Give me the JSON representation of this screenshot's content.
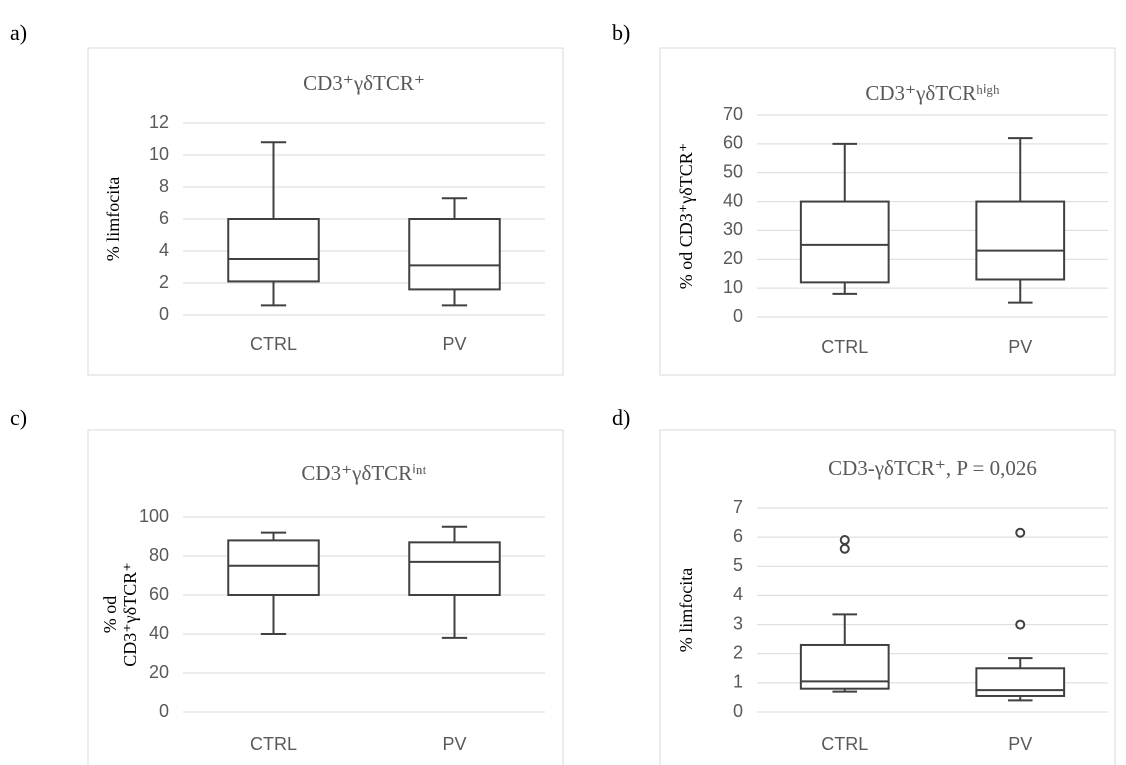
{
  "chart_data": [
    {
      "type": "box",
      "panel_label": "a)",
      "title": "CD3⁺γδTCR⁺",
      "y_label": [
        "% limfocita"
      ],
      "categories": [
        "CTRL",
        "PV"
      ],
      "boxes": [
        {
          "whisker_low": 0.6,
          "q1": 2.1,
          "median": 3.5,
          "q3": 6.0,
          "whisker_high": 10.8,
          "outliers": []
        },
        {
          "whisker_low": 0.6,
          "q1": 1.6,
          "median": 3.1,
          "q3": 6.0,
          "whisker_high": 7.3,
          "outliers": []
        }
      ],
      "ylim": [
        0,
        12
      ],
      "yticks": [
        0,
        2,
        4,
        6,
        8,
        10,
        12
      ],
      "grid": true,
      "color": "#404040"
    },
    {
      "type": "box",
      "panel_label": "b)",
      "title": "CD3⁺γδTCRʰⁱᵍʰ",
      "y_label": [
        "% od CD3⁺γδTCR⁺"
      ],
      "categories": [
        "CTRL",
        "PV"
      ],
      "boxes": [
        {
          "whisker_low": 8,
          "q1": 12,
          "median": 25,
          "q3": 40,
          "whisker_high": 60,
          "outliers": []
        },
        {
          "whisker_low": 5,
          "q1": 13,
          "median": 23,
          "q3": 40,
          "whisker_high": 62,
          "outliers": []
        }
      ],
      "ylim": [
        0,
        70
      ],
      "yticks": [
        0,
        10,
        20,
        30,
        40,
        50,
        60,
        70
      ],
      "grid": true,
      "color": "#404040"
    },
    {
      "type": "box",
      "panel_label": "c)",
      "title": "CD3⁺γδTCRⁱⁿᵗ",
      "y_label": [
        "% od",
        "CD3⁺γδTCR⁺"
      ],
      "categories": [
        "CTRL",
        "PV"
      ],
      "boxes": [
        {
          "whisker_low": 40,
          "q1": 60,
          "median": 75,
          "q3": 88,
          "whisker_high": 92,
          "outliers": []
        },
        {
          "whisker_low": 38,
          "q1": 60,
          "median": 77,
          "q3": 87,
          "whisker_high": 95,
          "outliers": []
        }
      ],
      "ylim": [
        0,
        100
      ],
      "yticks": [
        0,
        20,
        40,
        60,
        80,
        100
      ],
      "grid": true,
      "color": "#404040"
    },
    {
      "type": "box",
      "panel_label": "d)",
      "title": "CD3-γδTCR⁺, P = 0,026",
      "y_label": [
        "% limfocita"
      ],
      "categories": [
        "CTRL",
        "PV"
      ],
      "boxes": [
        {
          "whisker_low": 0.7,
          "q1": 0.8,
          "median": 1.05,
          "q3": 2.3,
          "whisker_high": 3.35,
          "outliers": [
            5.6,
            5.9
          ]
        },
        {
          "whisker_low": 0.4,
          "q1": 0.55,
          "median": 0.75,
          "q3": 1.5,
          "whisker_high": 1.85,
          "outliers": [
            3.0,
            6.15
          ]
        }
      ],
      "ylim": [
        0,
        7
      ],
      "yticks": [
        0,
        1,
        2,
        3,
        4,
        5,
        6,
        7
      ],
      "grid": true,
      "color": "#404040"
    }
  ]
}
